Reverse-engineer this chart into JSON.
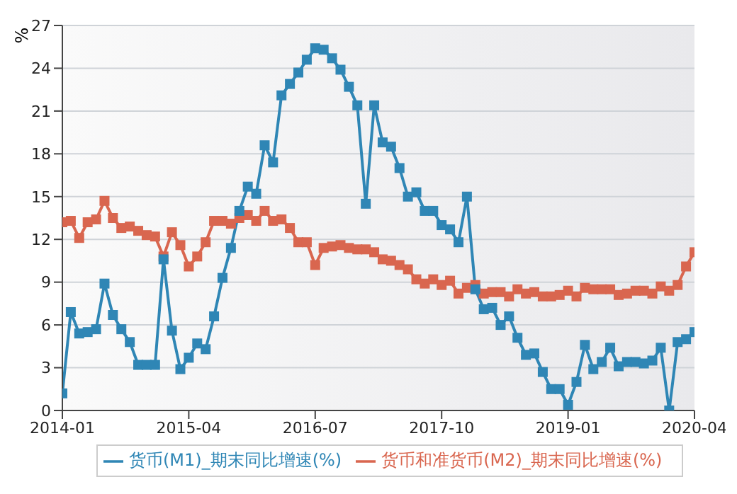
{
  "chart_data": {
    "type": "line",
    "ylabel": "%",
    "x": [
      "2014-01",
      "2014-02",
      "2014-03",
      "2014-04",
      "2014-05",
      "2014-06",
      "2014-07",
      "2014-08",
      "2014-09",
      "2014-10",
      "2014-11",
      "2014-12",
      "2015-01",
      "2015-02",
      "2015-03",
      "2015-04",
      "2015-05",
      "2015-06",
      "2015-07",
      "2015-08",
      "2015-09",
      "2015-10",
      "2015-11",
      "2015-12",
      "2016-01",
      "2016-02",
      "2016-03",
      "2016-04",
      "2016-05",
      "2016-06",
      "2016-07",
      "2016-08",
      "2016-09",
      "2016-10",
      "2016-11",
      "2016-12",
      "2017-01",
      "2017-02",
      "2017-03",
      "2017-04",
      "2017-05",
      "2017-06",
      "2017-07",
      "2017-08",
      "2017-09",
      "2017-10",
      "2017-11",
      "2017-12",
      "2018-01",
      "2018-02",
      "2018-03",
      "2018-04",
      "2018-05",
      "2018-06",
      "2018-07",
      "2018-08",
      "2018-09",
      "2018-10",
      "2018-11",
      "2018-12",
      "2019-01",
      "2019-02",
      "2019-03",
      "2019-04",
      "2019-05",
      "2019-06",
      "2019-07",
      "2019-08",
      "2019-09",
      "2019-10",
      "2019-11",
      "2019-12",
      "2020-01",
      "2020-02",
      "2020-03",
      "2020-04"
    ],
    "series": [
      {
        "name": "货币和准货币(M2)_期末同比增速(%)",
        "color": "#d9664f",
        "values": [
          13.2,
          13.3,
          12.1,
          13.2,
          13.4,
          14.7,
          13.5,
          12.8,
          12.9,
          12.6,
          12.3,
          12.2,
          10.8,
          12.5,
          11.6,
          10.1,
          10.8,
          11.8,
          13.3,
          13.3,
          13.1,
          13.5,
          13.7,
          13.3,
          14.0,
          13.3,
          13.4,
          12.8,
          11.8,
          11.8,
          10.2,
          11.4,
          11.5,
          11.6,
          11.4,
          11.3,
          11.3,
          11.1,
          10.6,
          10.5,
          10.2,
          9.9,
          9.2,
          8.9,
          9.2,
          8.8,
          9.1,
          8.2,
          8.6,
          8.8,
          8.2,
          8.3,
          8.3,
          8.0,
          8.5,
          8.2,
          8.3,
          8.0,
          8.0,
          8.1,
          8.4,
          8.0,
          8.6,
          8.5,
          8.5,
          8.5,
          8.1,
          8.2,
          8.4,
          8.4,
          8.2,
          8.7,
          8.4,
          8.8,
          10.1,
          11.1
        ]
      },
      {
        "name": "货币(M1)_期末同比增速(%)",
        "color": "#2f86b5",
        "values": [
          1.2,
          6.9,
          5.4,
          5.5,
          5.7,
          8.9,
          6.7,
          5.7,
          4.8,
          3.2,
          3.2,
          3.2,
          10.6,
          5.6,
          2.9,
          3.7,
          4.7,
          4.3,
          6.6,
          9.3,
          11.4,
          14.0,
          15.7,
          15.2,
          18.6,
          17.4,
          22.1,
          22.9,
          23.7,
          24.6,
          25.4,
          25.3,
          24.7,
          23.9,
          22.7,
          21.4,
          14.5,
          21.4,
          18.8,
          18.5,
          17.0,
          15.0,
          15.3,
          14.0,
          14.0,
          13.0,
          12.7,
          11.8,
          15.0,
          8.5,
          7.1,
          7.2,
          6.0,
          6.6,
          5.1,
          3.9,
          4.0,
          2.7,
          1.5,
          1.5,
          0.4,
          2.0,
          4.6,
          2.9,
          3.4,
          4.4,
          3.1,
          3.4,
          3.4,
          3.3,
          3.5,
          4.4,
          0.0,
          4.8,
          5.0,
          5.5
        ]
      }
    ],
    "xlim": [
      "2014-01",
      "2020-04"
    ],
    "xticks": [
      "2014-01",
      "2015-04",
      "2016-07",
      "2017-10",
      "2019-01",
      "2020-04"
    ],
    "ylim": [
      0,
      27
    ],
    "yticks": [
      0,
      3,
      6,
      9,
      12,
      15,
      18,
      21,
      24,
      27
    ],
    "grid": "y",
    "legend": "bottom",
    "marker": "square",
    "line_style": "solid"
  }
}
